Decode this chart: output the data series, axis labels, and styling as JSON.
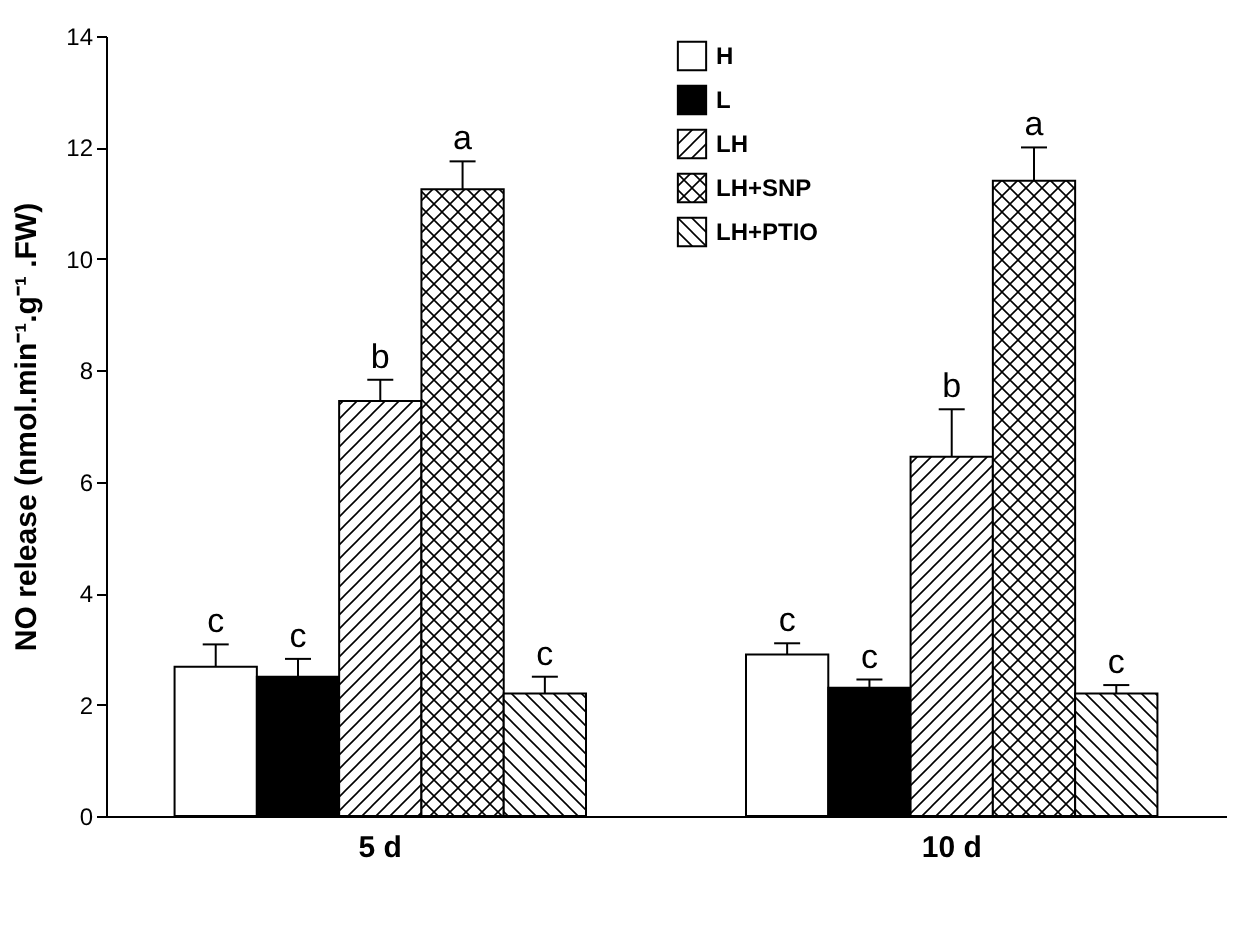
{
  "chart_data": {
    "type": "bar",
    "ylabel": "NO release (nmol.min⁻¹.g⁻¹ .FW)",
    "categories": [
      "5 d",
      "10 d"
    ],
    "ylim": [
      0,
      14
    ],
    "yticks": [
      0,
      2,
      4,
      6,
      8,
      10,
      12,
      14
    ],
    "legend": "top right",
    "series": [
      {
        "name": "H",
        "color": "#ffffff",
        "values": [
          2.68,
          2.9
        ],
        "errors": [
          0.4,
          0.2
        ],
        "value_labels": [
          "c",
          "c"
        ]
      },
      {
        "name": "L",
        "color": "#000000",
        "values": [
          2.5,
          2.3
        ],
        "errors": [
          0.32,
          0.15
        ],
        "value_labels": [
          "c",
          "c"
        ]
      },
      {
        "name": "LH",
        "color": "#000000",
        "values": [
          7.45,
          6.45
        ],
        "errors": [
          0.38,
          0.85
        ],
        "value_labels": [
          "b",
          "b"
        ]
      },
      {
        "name": "LH+SNP",
        "color": "#000000",
        "values": [
          11.25,
          11.4
        ],
        "errors": [
          0.5,
          0.6
        ],
        "value_labels": [
          "a",
          "a"
        ]
      },
      {
        "name": "LH+PTIO",
        "color": "#000000",
        "values": [
          2.2,
          2.2
        ],
        "errors": [
          0.3,
          0.15
        ],
        "value_labels": [
          "c",
          "c"
        ]
      }
    ]
  }
}
